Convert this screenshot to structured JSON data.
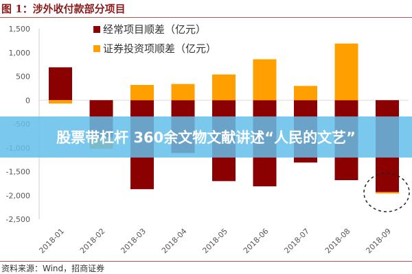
{
  "header": {
    "title": "图 1：涉外收付款部分项目"
  },
  "footer": {
    "source": "资料来源：Wind，招商证券"
  },
  "banner": {
    "text": "股票带杠杆 360余文物文献讲述“人民的文艺”"
  },
  "chart_data": {
    "type": "bar",
    "stacked": true,
    "categories": [
      "2018-01",
      "2018-02",
      "2018-03",
      "2018-04",
      "2018-05",
      "2018-06",
      "2018-07",
      "2018-08",
      "2018-09"
    ],
    "series": [
      {
        "name": "经常项目顺差（亿元）",
        "color": "#8b0000",
        "values": [
          690,
          -780,
          -1870,
          -1110,
          -1700,
          -1810,
          -1310,
          -1680,
          -1930
        ]
      },
      {
        "name": "证券投资项顺差（亿元）",
        "color": "#ffa000",
        "values": [
          -70,
          -240,
          320,
          340,
          540,
          860,
          300,
          1190,
          -30
        ]
      }
    ],
    "ylim": [
      -2500,
      1500
    ],
    "yticks": [
      "1,500",
      "1,000",
      "500",
      "0",
      "-500",
      "-1,000",
      "-1,500",
      "-2,000",
      "-2,500"
    ],
    "ytick_values": [
      1500,
      1000,
      500,
      0,
      -500,
      -1000,
      -1500,
      -2000,
      -2500
    ],
    "legend": "top-center",
    "grid": false,
    "annotation": "dashed circle around 2018-09"
  }
}
